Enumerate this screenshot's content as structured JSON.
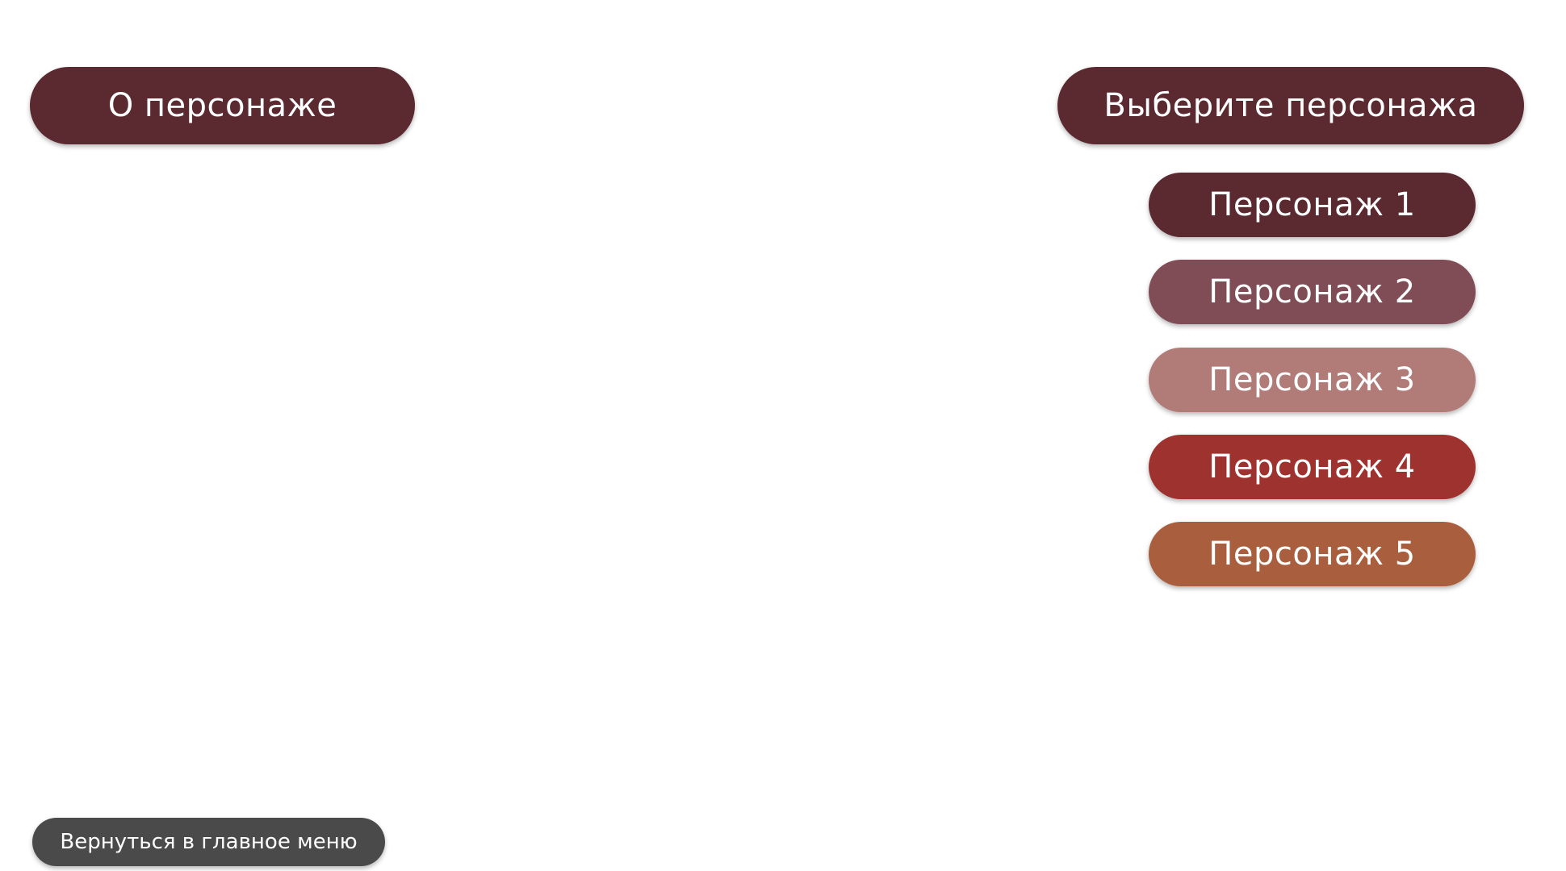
{
  "header": {
    "about_label": "О персонаже",
    "select_label": "Выберите персонажа"
  },
  "characters": [
    {
      "label": "Персонаж 1",
      "color": "#5b2930"
    },
    {
      "label": "Персонаж 2",
      "color": "#804c55"
    },
    {
      "label": "Персонаж 3",
      "color": "#b17b77"
    },
    {
      "label": "Персонаж 4",
      "color": "#9e322f"
    },
    {
      "label": "Персонаж 5",
      "color": "#a95f3e"
    }
  ],
  "footer": {
    "back_label": "Вернуться в главное меню"
  },
  "colors": {
    "header_bg": "#5b2930",
    "back_bg": "#4a4a4a",
    "text": "#ffffff"
  }
}
